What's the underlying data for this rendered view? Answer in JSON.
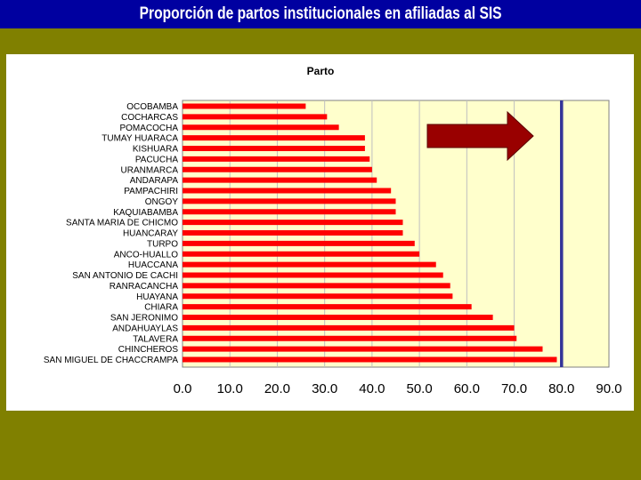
{
  "slide": {
    "title": "Proporción de partos institucionales en afiliadas al SIS",
    "colors": {
      "background": "#808000",
      "title_bar": "#0000a0",
      "title_text": "#ffffff"
    }
  },
  "chart_data": {
    "type": "bar",
    "orientation": "horizontal",
    "title": "Parto",
    "xlabel": "",
    "ylabel": "",
    "xlim": [
      0,
      90
    ],
    "x_ticks": [
      "0.0",
      "10.0",
      "20.0",
      "30.0",
      "40.0",
      "50.0",
      "60.0",
      "70.0",
      "80.0",
      "90.0"
    ],
    "grid": "vertical",
    "categories": [
      "OCOBAMBA",
      "COCHARCAS",
      "POMACOCHA",
      "TUMAY HUARACA",
      "KISHUARA",
      "PACUCHA",
      "URANMARCA",
      "ANDARAPA",
      "PAMPACHIRI",
      "ONGOY",
      "KAQUIABAMBA",
      "SANTA MARIA DE CHICMO",
      "HUANCARAY",
      "TURPO",
      "ANCO-HUALLO",
      "HUACCANA",
      "SAN ANTONIO DE CACHI",
      "RANRACANCHA",
      "HUAYANA",
      "CHIARA",
      "SAN JERONIMO",
      "ANDAHUAYLAS",
      "TALAVERA",
      "CHINCHEROS",
      "SAN MIGUEL DE CHACCRAMPA"
    ],
    "values": [
      26,
      30.5,
      33,
      38.5,
      38.5,
      39.5,
      40,
      41,
      44,
      45,
      45,
      46.5,
      46.5,
      49,
      50,
      53.5,
      55,
      56.5,
      57,
      61,
      65.5,
      70,
      70.5,
      76,
      79
    ],
    "reference_line": {
      "value": 80
    },
    "annotation": "arrow pointing right toward the 80% reference line",
    "colors": {
      "bar": "#ff0000",
      "plot_bg": "#ffffcc",
      "reference_line": "#333399",
      "arrow": "#990000",
      "grid": "#c0c0c0"
    }
  }
}
